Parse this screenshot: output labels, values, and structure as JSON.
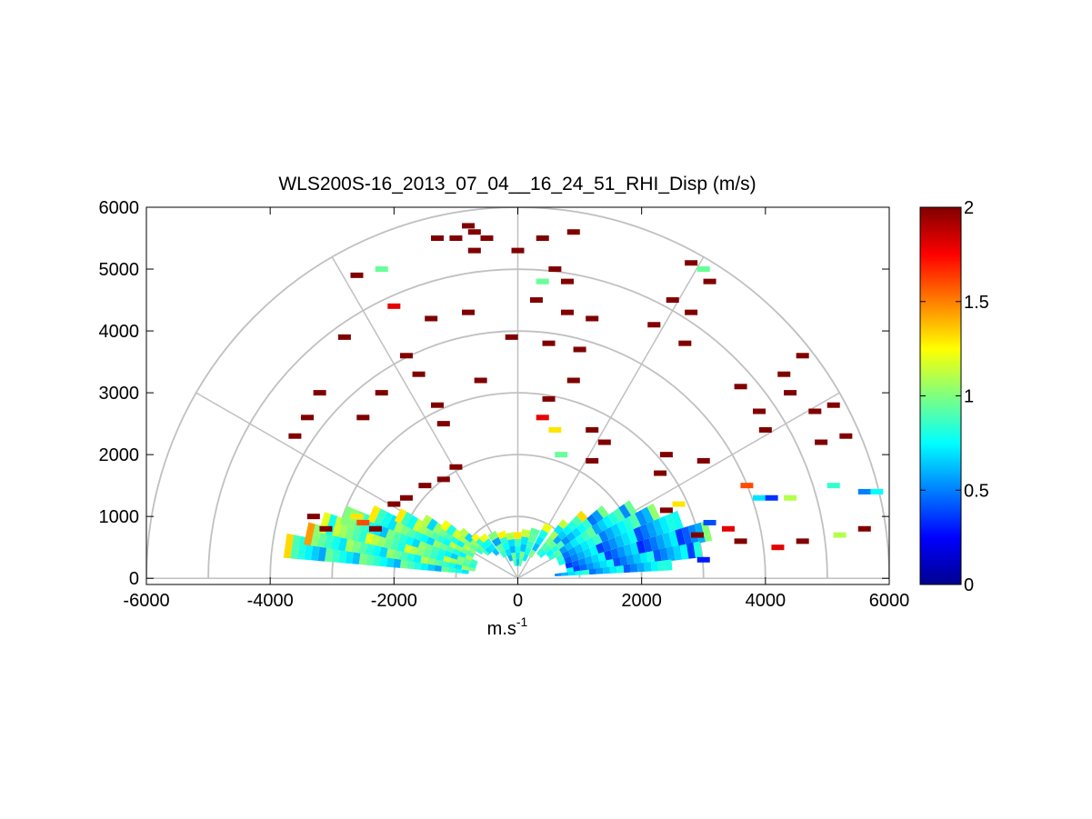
{
  "chart_data": {
    "type": "heatmap",
    "title": "WLS200S-16_2013_07_04__16_24_51_RHI_Disp (m/s)",
    "xlabel_base": "m.s",
    "xlabel_exponent": "-1",
    "ylabel": "",
    "x_ticks": [
      -6000,
      -4000,
      -2000,
      0,
      2000,
      4000,
      6000
    ],
    "y_ticks": [
      0,
      1000,
      2000,
      3000,
      4000,
      5000,
      6000
    ],
    "xlim": [
      -6000,
      6000
    ],
    "ylim": [
      -100,
      6000
    ],
    "polar_grid": {
      "range_rings": [
        1000,
        2000,
        3000,
        4000,
        5000,
        6000
      ],
      "spokes_deg": [
        0,
        30,
        60,
        90,
        120,
        150,
        180
      ]
    },
    "colorbar": {
      "min": 0,
      "max": 2,
      "ticks": [
        0,
        0.5,
        1,
        1.5,
        2
      ],
      "colormap": "jet"
    },
    "grid": true,
    "series": [
      {
        "values": [
          {
            "az": 172,
            "r0": 800,
            "r1": 3800,
            "v": 0.8,
            "w": 6
          },
          {
            "az": 168,
            "r0": 700,
            "r1": 3500,
            "v": 0.9,
            "w": 6
          },
          {
            "az": 164,
            "r0": 700,
            "r1": 3300,
            "v": 1.0,
            "w": 6
          },
          {
            "az": 160,
            "r0": 700,
            "r1": 3000,
            "v": 0.85,
            "w": 6
          },
          {
            "az": 156,
            "r0": 800,
            "r1": 2600,
            "v": 0.9,
            "w": 6
          },
          {
            "az": 152,
            "r0": 800,
            "r1": 2200,
            "v": 0.95,
            "w": 6
          },
          {
            "az": 148,
            "r0": 800,
            "r1": 1800,
            "v": 0.9,
            "w": 6
          },
          {
            "az": 144,
            "r0": 700,
            "r1": 1500,
            "v": 1.0,
            "w": 6
          },
          {
            "az": 140,
            "r0": 600,
            "r1": 1200,
            "v": 0.85,
            "w": 6
          },
          {
            "az": 136,
            "r0": 600,
            "r1": 1000,
            "v": 0.9,
            "w": 6
          },
          {
            "az": 130,
            "r0": 500,
            "r1": 900,
            "v": 0.8,
            "w": 8
          },
          {
            "az": 120,
            "r0": 400,
            "r1": 850,
            "v": 0.8,
            "w": 10
          },
          {
            "az": 110,
            "r0": 300,
            "r1": 800,
            "v": 0.75,
            "w": 10
          },
          {
            "az": 100,
            "r0": 200,
            "r1": 750,
            "v": 0.8,
            "w": 10
          },
          {
            "az": 90,
            "r0": 200,
            "r1": 750,
            "v": 0.75,
            "w": 10
          },
          {
            "az": 80,
            "r0": 200,
            "r1": 800,
            "v": 0.8,
            "w": 10
          },
          {
            "az": 70,
            "r0": 300,
            "r1": 850,
            "v": 0.8,
            "w": 10
          },
          {
            "az": 60,
            "r0": 400,
            "r1": 1000,
            "v": 0.85,
            "w": 8
          },
          {
            "az": 50,
            "r0": 500,
            "r1": 1200,
            "v": 0.9,
            "w": 6
          },
          {
            "az": 44,
            "r0": 500,
            "r1": 1500,
            "v": 0.8,
            "w": 6
          },
          {
            "az": 38,
            "r0": 600,
            "r1": 1800,
            "v": 0.7,
            "w": 6
          },
          {
            "az": 32,
            "r0": 600,
            "r1": 2200,
            "v": 0.75,
            "w": 6
          },
          {
            "az": 26,
            "r0": 700,
            "r1": 2500,
            "v": 0.7,
            "w": 6
          },
          {
            "az": 20,
            "r0": 700,
            "r1": 2800,
            "v": 0.6,
            "w": 6
          },
          {
            "az": 14,
            "r0": 800,
            "r1": 3200,
            "v": 0.55,
            "w": 6
          },
          {
            "az": 9,
            "r0": 800,
            "r1": 3000,
            "v": 0.6,
            "w": 5
          },
          {
            "az": 5,
            "r0": 600,
            "r1": 2500,
            "v": 0.65,
            "w": 4
          }
        ]
      },
      {
        "values": [
          {
            "x": -3100,
            "y": 800,
            "v": 2.0
          },
          {
            "x": -3300,
            "y": 1000,
            "v": 2.0
          },
          {
            "x": -2600,
            "y": 1000,
            "v": 1.3
          },
          {
            "x": -2500,
            "y": 900,
            "v": 1.6
          },
          {
            "x": -2300,
            "y": 800,
            "v": 2.0
          },
          {
            "x": -2000,
            "y": 1200,
            "v": 2.0
          },
          {
            "x": -1800,
            "y": 1300,
            "v": 2.0
          },
          {
            "x": -1500,
            "y": 1500,
            "v": 2.0
          },
          {
            "x": -1200,
            "y": 1600,
            "v": 2.0
          },
          {
            "x": -1000,
            "y": 1800,
            "v": 2.0
          },
          {
            "x": -3600,
            "y": 2300,
            "v": 2.0
          },
          {
            "x": -3400,
            "y": 2600,
            "v": 2.0
          },
          {
            "x": -3200,
            "y": 3000,
            "v": 2.0
          },
          {
            "x": -2500,
            "y": 2600,
            "v": 2.0
          },
          {
            "x": -2200,
            "y": 3000,
            "v": 2.0
          },
          {
            "x": -2800,
            "y": 3900,
            "v": 2.0
          },
          {
            "x": -2600,
            "y": 4900,
            "v": 2.0
          },
          {
            "x": -2200,
            "y": 5000,
            "v": 0.95
          },
          {
            "x": -2000,
            "y": 4400,
            "v": 1.8
          },
          {
            "x": -1800,
            "y": 3600,
            "v": 2.0
          },
          {
            "x": -1600,
            "y": 3300,
            "v": 2.0
          },
          {
            "x": -1300,
            "y": 2800,
            "v": 2.0
          },
          {
            "x": -1200,
            "y": 2500,
            "v": 2.0
          },
          {
            "x": -1400,
            "y": 4200,
            "v": 2.0
          },
          {
            "x": -1300,
            "y": 5500,
            "v": 2.0
          },
          {
            "x": -1000,
            "y": 5500,
            "v": 2.0
          },
          {
            "x": -800,
            "y": 5700,
            "v": 2.0
          },
          {
            "x": -700,
            "y": 5600,
            "v": 2.0
          },
          {
            "x": -500,
            "y": 5500,
            "v": 2.0
          },
          {
            "x": -700,
            "y": 5300,
            "v": 2.0
          },
          {
            "x": -800,
            "y": 4300,
            "v": 2.0
          },
          {
            "x": -600,
            "y": 3200,
            "v": 2.0
          },
          {
            "x": -100,
            "y": 3900,
            "v": 2.0
          },
          {
            "x": 0,
            "y": 5300,
            "v": 2.0
          },
          {
            "x": 400,
            "y": 5500,
            "v": 2.0
          },
          {
            "x": 300,
            "y": 4500,
            "v": 2.0
          },
          {
            "x": 400,
            "y": 4800,
            "v": 0.95
          },
          {
            "x": 900,
            "y": 5600,
            "v": 2.0
          },
          {
            "x": 600,
            "y": 5000,
            "v": 2.0
          },
          {
            "x": 800,
            "y": 4800,
            "v": 2.0
          },
          {
            "x": 800,
            "y": 4300,
            "v": 2.0
          },
          {
            "x": 1200,
            "y": 4200,
            "v": 2.0
          },
          {
            "x": 500,
            "y": 3800,
            "v": 2.0
          },
          {
            "x": 1000,
            "y": 3700,
            "v": 2.0
          },
          {
            "x": 900,
            "y": 3200,
            "v": 2.0
          },
          {
            "x": 500,
            "y": 2900,
            "v": 2.0
          },
          {
            "x": 400,
            "y": 2600,
            "v": 1.8
          },
          {
            "x": 600,
            "y": 2400,
            "v": 1.3
          },
          {
            "x": 1200,
            "y": 2400,
            "v": 2.0
          },
          {
            "x": 1400,
            "y": 2200,
            "v": 2.0
          },
          {
            "x": 1200,
            "y": 1900,
            "v": 2.0
          },
          {
            "x": 700,
            "y": 2000,
            "v": 0.95
          },
          {
            "x": 2400,
            "y": 2000,
            "v": 2.0
          },
          {
            "x": 2300,
            "y": 1700,
            "v": 2.0
          },
          {
            "x": 3000,
            "y": 1900,
            "v": 2.0
          },
          {
            "x": 2800,
            "y": 5100,
            "v": 2.0
          },
          {
            "x": 3000,
            "y": 5000,
            "v": 0.95
          },
          {
            "x": 3100,
            "y": 4800,
            "v": 2.0
          },
          {
            "x": 2500,
            "y": 4500,
            "v": 2.0
          },
          {
            "x": 2800,
            "y": 4300,
            "v": 2.0
          },
          {
            "x": 2200,
            "y": 4100,
            "v": 2.0
          },
          {
            "x": 2700,
            "y": 3800,
            "v": 2.0
          },
          {
            "x": 3600,
            "y": 3100,
            "v": 2.0
          },
          {
            "x": 3900,
            "y": 2700,
            "v": 2.0
          },
          {
            "x": 4000,
            "y": 2400,
            "v": 2.0
          },
          {
            "x": 4300,
            "y": 3300,
            "v": 2.0
          },
          {
            "x": 4400,
            "y": 3000,
            "v": 2.0
          },
          {
            "x": 4600,
            "y": 3600,
            "v": 2.0
          },
          {
            "x": 4800,
            "y": 2700,
            "v": 2.0
          },
          {
            "x": 5100,
            "y": 2800,
            "v": 2.0
          },
          {
            "x": 4900,
            "y": 2200,
            "v": 2.0
          },
          {
            "x": 5300,
            "y": 2300,
            "v": 2.0
          },
          {
            "x": 3700,
            "y": 1500,
            "v": 1.6
          },
          {
            "x": 3900,
            "y": 1300,
            "v": 0.7
          },
          {
            "x": 4100,
            "y": 1300,
            "v": 0.35
          },
          {
            "x": 4400,
            "y": 1300,
            "v": 1.1
          },
          {
            "x": 5100,
            "y": 1500,
            "v": 0.85
          },
          {
            "x": 5600,
            "y": 1400,
            "v": 0.5
          },
          {
            "x": 5800,
            "y": 1400,
            "v": 0.75
          },
          {
            "x": 3400,
            "y": 800,
            "v": 1.8
          },
          {
            "x": 3600,
            "y": 600,
            "v": 2.0
          },
          {
            "x": 4200,
            "y": 500,
            "v": 1.8
          },
          {
            "x": 4600,
            "y": 600,
            "v": 2.0
          },
          {
            "x": 5200,
            "y": 700,
            "v": 1.1
          },
          {
            "x": 5600,
            "y": 800,
            "v": 2.0
          },
          {
            "x": 3000,
            "y": 300,
            "v": 0.3
          },
          {
            "x": 2900,
            "y": 700,
            "v": 2.0
          },
          {
            "x": 3100,
            "y": 900,
            "v": 0.4
          },
          {
            "x": 2600,
            "y": 1200,
            "v": 1.3
          },
          {
            "x": 2400,
            "y": 1100,
            "v": 2.0
          }
        ]
      }
    ]
  }
}
